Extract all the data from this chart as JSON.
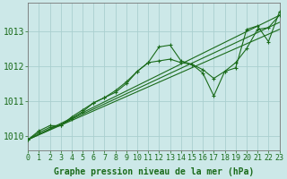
{
  "xlabel": "Graphe pression niveau de la mer (hPa)",
  "bg_color": "#cce8e8",
  "grid_color": "#aacfcf",
  "line_color": "#1a6b1a",
  "x_ticks": [
    0,
    1,
    2,
    3,
    4,
    5,
    6,
    7,
    8,
    9,
    10,
    11,
    12,
    13,
    14,
    15,
    16,
    17,
    18,
    19,
    20,
    21,
    22,
    23
  ],
  "y_ticks": [
    1010,
    1011,
    1012,
    1013
  ],
  "xlim": [
    0,
    23
  ],
  "ylim": [
    1009.6,
    1013.8
  ],
  "series1_x": [
    0,
    1,
    2,
    3,
    4,
    5,
    6,
    7,
    8,
    9,
    10,
    11,
    12,
    13,
    14,
    15,
    16,
    17,
    18,
    19,
    20,
    21,
    22,
    23
  ],
  "series1_y": [
    1009.9,
    1010.1,
    1010.25,
    1010.3,
    1010.55,
    1010.75,
    1010.95,
    1011.1,
    1011.3,
    1011.55,
    1011.85,
    1012.1,
    1012.55,
    1012.6,
    1012.15,
    1012.05,
    1011.8,
    1011.15,
    1011.85,
    1011.95,
    1013.05,
    1013.15,
    1012.7,
    1013.55
  ],
  "series2_x": [
    0,
    1,
    2,
    3,
    4,
    5,
    6,
    7,
    8,
    9,
    10,
    11,
    12,
    13,
    14,
    15,
    16,
    17,
    18,
    19,
    20,
    21,
    22,
    23
  ],
  "series2_y": [
    1009.9,
    1010.15,
    1010.3,
    1010.3,
    1010.5,
    1010.7,
    1010.95,
    1011.1,
    1011.25,
    1011.5,
    1011.85,
    1012.1,
    1012.15,
    1012.2,
    1012.1,
    1012.05,
    1011.9,
    1011.65,
    1011.85,
    1012.1,
    1012.5,
    1013.05,
    1013.1,
    1013.45
  ],
  "trend1_x": [
    0,
    23
  ],
  "trend1_y": [
    1009.9,
    1013.45
  ],
  "trend2_x": [
    0,
    23
  ],
  "trend2_y": [
    1009.9,
    1013.25
  ],
  "trend3_x": [
    0,
    23
  ],
  "trend3_y": [
    1009.9,
    1013.05
  ],
  "tick_color": "#1a6b1a",
  "xlabel_fontsize": 7,
  "tick_fontsize": 6
}
